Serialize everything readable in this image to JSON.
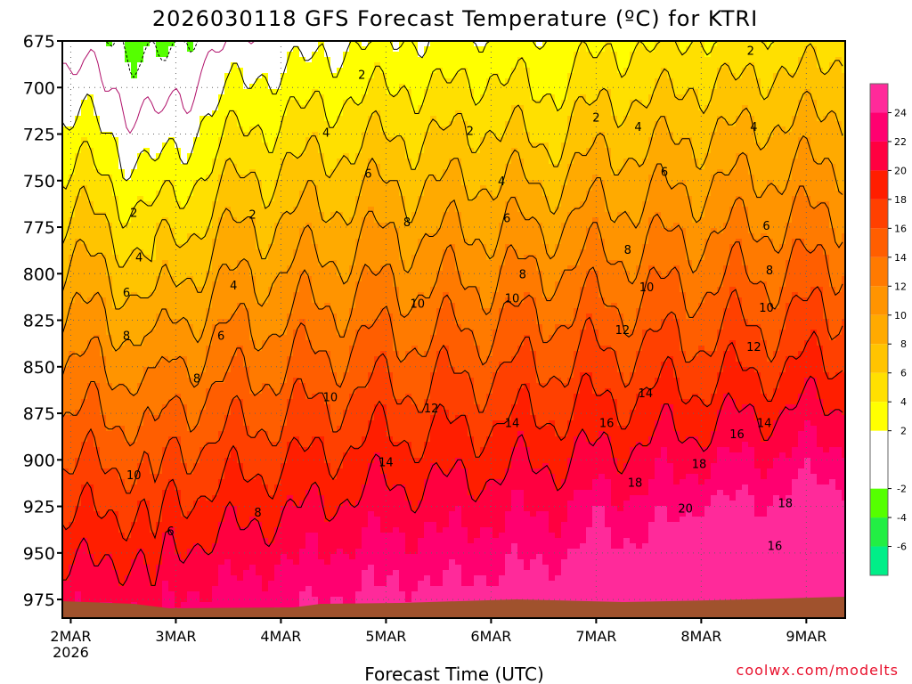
{
  "chart_data": {
    "type": "heatmap",
    "title": "2026030118 GFS Forecast Temperature (ºC) for KTRI",
    "xlabel": "Forecast Time (UTC)",
    "ylabel": "",
    "credit": "coolwx.com/modelts",
    "y_levels": [
      "675",
      "700",
      "725",
      "750",
      "775",
      "800",
      "825",
      "850",
      "875",
      "900",
      "925",
      "950",
      "975"
    ],
    "ylim": [
      675,
      985
    ],
    "x_ticks": [
      {
        "label": "2MAR",
        "sub": "2026",
        "day": 0
      },
      {
        "label": "3MAR",
        "sub": "",
        "day": 1
      },
      {
        "label": "4MAR",
        "sub": "",
        "day": 2
      },
      {
        "label": "5MAR",
        "sub": "",
        "day": 3
      },
      {
        "label": "6MAR",
        "sub": "",
        "day": 4
      },
      {
        "label": "7MAR",
        "sub": "",
        "day": 5
      },
      {
        "label": "8MAR",
        "sub": "",
        "day": 6
      },
      {
        "label": "9MAR",
        "sub": "",
        "day": 7
      }
    ],
    "xlim_days": [
      -0.08,
      7.37
    ],
    "colorbar": {
      "ticks": [
        "24",
        "22",
        "20",
        "18",
        "16",
        "14",
        "12",
        "10",
        "8",
        "6",
        "4",
        "2",
        "-2",
        "-4",
        "-6"
      ],
      "bands": [
        {
          "min": -8,
          "max": -6,
          "color": "#00ee88"
        },
        {
          "min": -6,
          "max": -4,
          "color": "#22ee44"
        },
        {
          "min": -4,
          "max": -2,
          "color": "#55ff00"
        },
        {
          "min": -2,
          "max": 2,
          "color": "#ffffff"
        },
        {
          "min": 2,
          "max": 4,
          "color": "#ffff00"
        },
        {
          "min": 4,
          "max": 6,
          "color": "#ffe000"
        },
        {
          "min": 6,
          "max": 8,
          "color": "#ffc400"
        },
        {
          "min": 8,
          "max": 10,
          "color": "#ffaa00"
        },
        {
          "min": 10,
          "max": 12,
          "color": "#ff9400"
        },
        {
          "min": 12,
          "max": 14,
          "color": "#ff7a00"
        },
        {
          "min": 14,
          "max": 16,
          "color": "#ff5e00"
        },
        {
          "min": 16,
          "max": 18,
          "color": "#ff4000"
        },
        {
          "min": 18,
          "max": 20,
          "color": "#ff1e00"
        },
        {
          "min": 20,
          "max": 22,
          "color": "#ff0040"
        },
        {
          "min": 22,
          "max": 24,
          "color": "#ff0070"
        },
        {
          "min": 24,
          "max": 26,
          "color": "#ff2a9a"
        }
      ]
    },
    "contour_labels": [
      {
        "text": "2",
        "day": 2.77,
        "p": 693
      },
      {
        "text": "2",
        "day": 6.47,
        "p": 680
      },
      {
        "text": "2",
        "day": 5.0,
        "p": 716
      },
      {
        "text": "2",
        "day": 3.8,
        "p": 723
      },
      {
        "text": "2",
        "day": 0.6,
        "p": 767
      },
      {
        "text": "2",
        "day": 1.73,
        "p": 768
      },
      {
        "text": "4",
        "day": 2.43,
        "p": 724
      },
      {
        "text": "4",
        "day": 4.1,
        "p": 750
      },
      {
        "text": "4",
        "day": 5.4,
        "p": 721
      },
      {
        "text": "4",
        "day": 6.5,
        "p": 721
      },
      {
        "text": "4",
        "day": 0.65,
        "p": 791
      },
      {
        "text": "4",
        "day": 1.55,
        "p": 806
      },
      {
        "text": "6",
        "day": 2.83,
        "p": 746
      },
      {
        "text": "6",
        "day": 4.15,
        "p": 770
      },
      {
        "text": "6",
        "day": 5.65,
        "p": 745
      },
      {
        "text": "6",
        "day": 6.62,
        "p": 774
      },
      {
        "text": "6",
        "day": 0.53,
        "p": 810
      },
      {
        "text": "6",
        "day": 1.43,
        "p": 833
      },
      {
        "text": "6",
        "day": 0.95,
        "p": 938
      },
      {
        "text": "8",
        "day": 3.2,
        "p": 772
      },
      {
        "text": "8",
        "day": 4.3,
        "p": 800
      },
      {
        "text": "8",
        "day": 5.3,
        "p": 787
      },
      {
        "text": "8",
        "day": 6.65,
        "p": 798
      },
      {
        "text": "8",
        "day": 0.53,
        "p": 833
      },
      {
        "text": "8",
        "day": 1.2,
        "p": 856
      },
      {
        "text": "8",
        "day": 1.78,
        "p": 928
      },
      {
        "text": "10",
        "day": 3.3,
        "p": 816
      },
      {
        "text": "10",
        "day": 4.2,
        "p": 813
      },
      {
        "text": "10",
        "day": 5.48,
        "p": 807
      },
      {
        "text": "10",
        "day": 6.62,
        "p": 818
      },
      {
        "text": "10",
        "day": 2.47,
        "p": 866
      },
      {
        "text": "10",
        "day": 0.6,
        "p": 908
      },
      {
        "text": "12",
        "day": 3.43,
        "p": 872
      },
      {
        "text": "12",
        "day": 5.25,
        "p": 830
      },
      {
        "text": "12",
        "day": 6.5,
        "p": 839
      },
      {
        "text": "14",
        "day": 3.0,
        "p": 901
      },
      {
        "text": "14",
        "day": 4.2,
        "p": 880
      },
      {
        "text": "14",
        "day": 5.47,
        "p": 864
      },
      {
        "text": "14",
        "day": 6.6,
        "p": 880
      },
      {
        "text": "16",
        "day": 5.1,
        "p": 880
      },
      {
        "text": "16",
        "day": 6.34,
        "p": 886
      },
      {
        "text": "16",
        "day": 6.7,
        "p": 946
      },
      {
        "text": "18",
        "day": 5.37,
        "p": 912
      },
      {
        "text": "18",
        "day": 5.98,
        "p": 902
      },
      {
        "text": "18",
        "day": 6.8,
        "p": 923
      },
      {
        "text": "20",
        "day": 5.85,
        "p": 926
      }
    ]
  }
}
